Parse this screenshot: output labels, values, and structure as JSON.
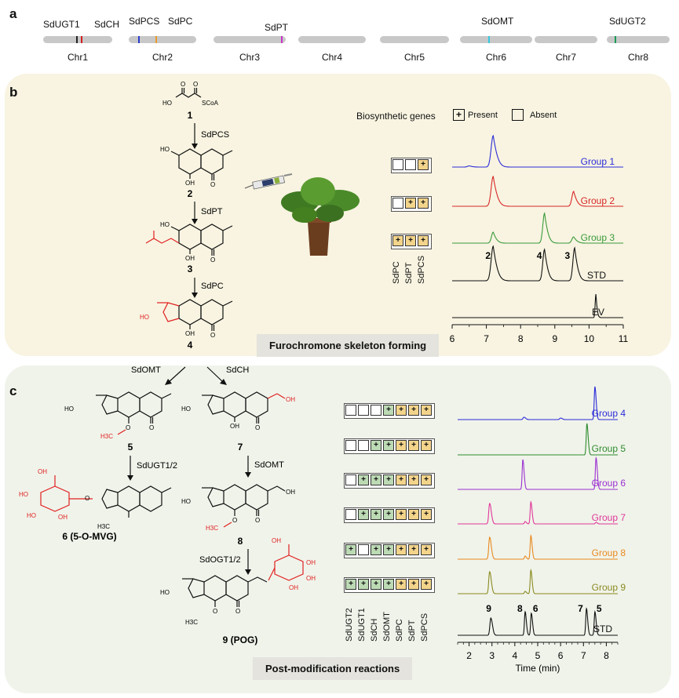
{
  "panel_a": {
    "letter": "a",
    "chromosomes": [
      "Chr1",
      "Chr2",
      "Chr3",
      "Chr4",
      "Chr5",
      "Chr6",
      "Chr7",
      "Chr8"
    ],
    "genes": [
      {
        "name": "SdUGT1",
        "chr": "Chr1",
        "color": "#222222"
      },
      {
        "name": "SdCH",
        "chr": "Chr1",
        "color": "#d42020"
      },
      {
        "name": "SdPCS",
        "chr": "Chr2",
        "color": "#2a3bd0"
      },
      {
        "name": "SdPC",
        "chr": "Chr2",
        "color": "#e89a2c"
      },
      {
        "name": "SdPT",
        "chr": "Chr3",
        "color": "#c935c9"
      },
      {
        "name": "SdOMT",
        "chr": "Chr6",
        "color": "#35c8e0"
      },
      {
        "name": "SdUGT2",
        "chr": "Chr8",
        "color": "#1a9a55"
      }
    ]
  },
  "panel_b": {
    "letter": "b",
    "compounds": [
      "1",
      "2",
      "3",
      "4"
    ],
    "enzymes": [
      "SdPCS",
      "SdPT",
      "SdPC"
    ],
    "coa_label": "SCoA",
    "caption": "Furochromone skeleton forming",
    "legend": {
      "title": "Biosynthetic genes",
      "present": "Present",
      "absent": "Absent",
      "plus": "+"
    },
    "gene_columns": [
      "SdPC",
      "SdPT",
      "SdPCS"
    ],
    "groups": [
      {
        "name": "Group 1",
        "color": "#2b2bd8",
        "present": [
          false,
          false,
          true
        ]
      },
      {
        "name": "Group 2",
        "color": "#d82828",
        "present": [
          false,
          true,
          true
        ]
      },
      {
        "name": "Group 3",
        "color": "#3a9a3a",
        "present": [
          true,
          true,
          true
        ]
      }
    ],
    "std_label": "STD",
    "ev_label": "EV",
    "peak_labels": [
      "2",
      "4",
      "3"
    ],
    "x_ticks": [
      "6",
      "7",
      "8",
      "9",
      "10",
      "11"
    ]
  },
  "panel_c": {
    "letter": "c",
    "enzymes": [
      "SdOMT",
      "SdCH",
      "SdUGT1/2",
      "SdOMT",
      "SdOGT1/2"
    ],
    "compounds": [
      "5",
      "7",
      "8"
    ],
    "compound_6": "6 (5-O-MVG)",
    "compound_9": "9 (POG)",
    "methyl_label": "H3C",
    "caption": "Post-modification reactions",
    "gene_columns": [
      "SdUGT2",
      "SdUGT1",
      "SdCH",
      "SdOMT",
      "SdPC",
      "SdPT",
      "SdPCS"
    ],
    "groups": [
      {
        "name": "Group 4",
        "color": "#2b2bd8",
        "present": [
          false,
          false,
          false,
          true,
          true,
          true,
          true
        ]
      },
      {
        "name": "Group 5",
        "color": "#2e8b2e",
        "present": [
          false,
          false,
          true,
          true,
          true,
          true,
          true
        ]
      },
      {
        "name": "Group 6",
        "color": "#9b30d0",
        "present": [
          false,
          true,
          true,
          true,
          true,
          true,
          true
        ]
      },
      {
        "name": "Group 7",
        "color": "#e0379a",
        "present": [
          false,
          true,
          true,
          true,
          true,
          true,
          true
        ]
      },
      {
        "name": "Group 8",
        "color": "#e8891f",
        "present": [
          true,
          false,
          true,
          true,
          true,
          true,
          true
        ]
      },
      {
        "name": "Group 9",
        "color": "#8a8a20",
        "present": [
          true,
          true,
          true,
          true,
          true,
          true,
          true
        ]
      }
    ],
    "std_label": "STD",
    "peak_labels": [
      "9",
      "8",
      "6",
      "7",
      "5"
    ],
    "x_ticks": [
      "2",
      "3",
      "4",
      "5",
      "6",
      "7",
      "8"
    ],
    "x_axis_label": "Time (min)"
  }
}
